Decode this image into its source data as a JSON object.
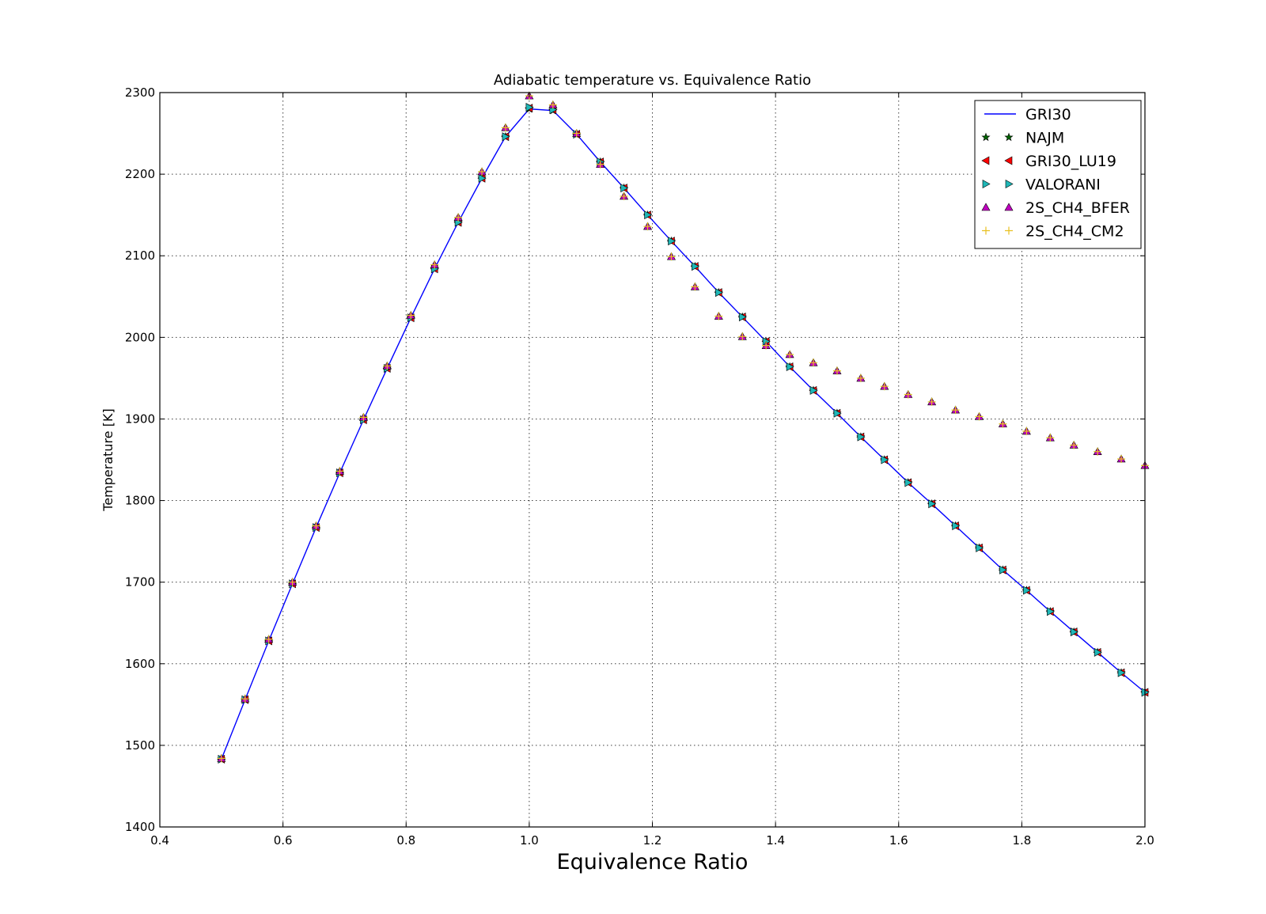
{
  "chart_data": {
    "type": "line",
    "title": "Adiabatic temperature vs. Equivalence Ratio",
    "xlabel": "Equivalence Ratio",
    "ylabel": "Temperature [K]",
    "xlim": [
      0.4,
      2.0
    ],
    "ylim": [
      1400,
      2300
    ],
    "xticks": [
      0.4,
      0.6,
      0.8,
      1.0,
      1.2,
      1.4,
      1.6,
      1.8,
      2.0
    ],
    "xtick_labels": [
      "0.4",
      "0.6",
      "0.8",
      "1.0",
      "1.2",
      "1.4",
      "1.6",
      "1.8",
      "2.0"
    ],
    "yticks": [
      1400,
      1500,
      1600,
      1700,
      1800,
      1900,
      2000,
      2100,
      2200,
      2300
    ],
    "ytick_labels": [
      "1400",
      "1500",
      "1600",
      "1700",
      "1800",
      "1900",
      "2000",
      "2100",
      "2200",
      "2300"
    ],
    "grid": true,
    "legend_position": "top-right",
    "x": [
      0.5,
      0.5385,
      0.5769,
      0.6154,
      0.6538,
      0.6923,
      0.7308,
      0.7692,
      0.8077,
      0.8462,
      0.8846,
      0.9231,
      0.9615,
      1.0,
      1.0385,
      1.0769,
      1.1154,
      1.1538,
      1.1923,
      1.2308,
      1.2692,
      1.3077,
      1.3462,
      1.3846,
      1.4231,
      1.4615,
      1.5,
      1.5385,
      1.5769,
      1.6154,
      1.6538,
      1.6923,
      1.7308,
      1.7692,
      1.8077,
      1.8462,
      1.8846,
      1.9231,
      1.9615,
      2.0
    ],
    "series": [
      {
        "name": "GRI30",
        "style": "line",
        "color": "#0000ff",
        "values": [
          1483,
          1556,
          1628,
          1698,
          1767,
          1834,
          1899,
          1962,
          2024,
          2084,
          2141,
          2195,
          2246,
          2280,
          2278,
          2249,
          2215,
          2183,
          2150,
          2118,
          2087,
          2055,
          2025,
          1995,
          1964,
          1935,
          1907,
          1878,
          1850,
          1822,
          1796,
          1769,
          1742,
          1715,
          1690,
          1664,
          1639,
          1614,
          1589,
          1565
        ]
      },
      {
        "name": "NAJM",
        "style": "marker",
        "marker": "star",
        "color": "#006400",
        "values": [
          1483,
          1556,
          1628,
          1698,
          1767,
          1834,
          1899,
          1962,
          2024,
          2084,
          2141,
          2195,
          2246,
          2280,
          2278,
          2249,
          2215,
          2183,
          2150,
          2118,
          2087,
          2055,
          2025,
          1995,
          1964,
          1935,
          1907,
          1878,
          1850,
          1822,
          1796,
          1769,
          1742,
          1715,
          1690,
          1664,
          1639,
          1614,
          1589,
          1565
        ]
      },
      {
        "name": "GRI30_LU19",
        "style": "marker",
        "marker": "triangle-left",
        "color": "#ff0000",
        "values": [
          1483,
          1556,
          1628,
          1698,
          1767,
          1834,
          1899,
          1962,
          2024,
          2084,
          2141,
          2195,
          2246,
          2281,
          2279,
          2249,
          2215,
          2183,
          2150,
          2118,
          2087,
          2055,
          2025,
          1995,
          1964,
          1935,
          1907,
          1878,
          1850,
          1822,
          1796,
          1769,
          1742,
          1715,
          1690,
          1664,
          1639,
          1614,
          1589,
          1565
        ]
      },
      {
        "name": "VALORANI",
        "style": "marker",
        "marker": "triangle-right",
        "color": "#1fb7b7",
        "values": [
          1483,
          1556,
          1628,
          1698,
          1767,
          1834,
          1899,
          1962,
          2024,
          2084,
          2141,
          2195,
          2246,
          2282,
          2279,
          2249,
          2215,
          2183,
          2150,
          2118,
          2087,
          2055,
          2025,
          1995,
          1964,
          1935,
          1907,
          1878,
          1850,
          1822,
          1796,
          1769,
          1742,
          1715,
          1690,
          1664,
          1639,
          1614,
          1589,
          1565
        ]
      },
      {
        "name": "2S_CH4_BFER",
        "style": "marker",
        "marker": "triangle-up",
        "color": "#bf00bf",
        "values": [
          1484,
          1557,
          1630,
          1700,
          1769,
          1836,
          1902,
          1965,
          2027,
          2089,
          2147,
          2203,
          2257,
          2296,
          2285,
          2250,
          2212,
          2173,
          2136,
          2099,
          2062,
          2026,
          2001,
          1990,
          1979,
          1969,
          1959,
          1950,
          1940,
          1930,
          1921,
          1911,
          1903,
          1894,
          1885,
          1877,
          1868,
          1860,
          1851,
          1843
        ]
      },
      {
        "name": "2S_CH4_CM2",
        "style": "marker",
        "marker": "plus",
        "color": "#e8c020",
        "values": [
          1484,
          1557,
          1630,
          1700,
          1769,
          1836,
          1902,
          1965,
          2027,
          2089,
          2147,
          2203,
          2257,
          2296,
          2285,
          2250,
          2212,
          2173,
          2136,
          2099,
          2062,
          2026,
          2001,
          1990,
          1979,
          1969,
          1959,
          1950,
          1940,
          1930,
          1921,
          1911,
          1903,
          1894,
          1885,
          1877,
          1868,
          1860,
          1851,
          1843
        ]
      }
    ]
  }
}
